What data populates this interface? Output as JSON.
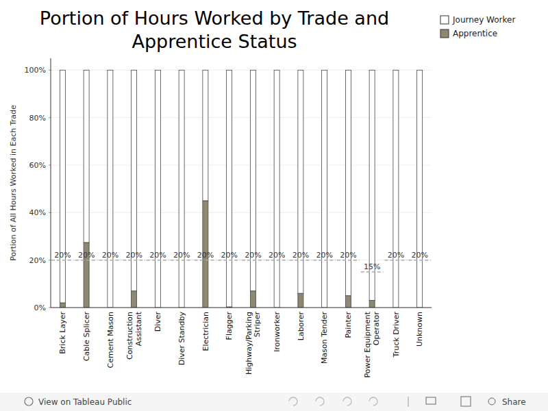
{
  "chart_data": {
    "type": "bar",
    "stacked": true,
    "title": "Portion of Hours Worked by Trade and Apprentice Status",
    "y_label": "Portion of All Hours Worked in Each Trade",
    "categories": [
      "Brick Layer",
      "Cable Splicer",
      "Cement Mason",
      "Construction Assistant",
      "Diver",
      "Diver Standby",
      "Electrician",
      "Flagger",
      "Highway/Parking Striper",
      "Ironworker",
      "Laborer",
      "Mason Tender",
      "Painter",
      "Power Equipment Operator",
      "Truck Driver",
      "Unknown"
    ],
    "series": [
      {
        "name": "Journey Worker",
        "color": "#ffffff",
        "values": [
          98,
          72.6,
          100,
          93,
          100,
          100,
          55,
          99.7,
          93,
          100,
          94,
          100,
          95,
          97,
          100,
          100
        ]
      },
      {
        "name": "Apprentice",
        "color": "#8e8772",
        "values": [
          2,
          27.4,
          0,
          7,
          0,
          0,
          45,
          0.3,
          7,
          0,
          6,
          0,
          5,
          3,
          0,
          0
        ]
      }
    ],
    "targets": [
      20,
      20,
      20,
      20,
      20,
      20,
      20,
      20,
      20,
      20,
      20,
      20,
      20,
      15,
      20,
      20
    ],
    "target_labels": [
      "20%",
      "20%",
      "20%",
      "20%",
      "20%",
      "20%",
      "20%",
      "20%",
      "20%",
      "20%",
      "20%",
      "20%",
      "20%",
      "15%",
      "20%",
      "20%"
    ],
    "ylim": [
      0,
      105
    ],
    "yticks": [
      {
        "value": 0,
        "label": "0%"
      },
      {
        "value": 20,
        "label": "20%"
      },
      {
        "value": 40,
        "label": "40%"
      },
      {
        "value": 60,
        "label": "60%"
      },
      {
        "value": 80,
        "label": "80%"
      },
      {
        "value": 100,
        "label": "100%"
      }
    ],
    "grid": true,
    "legend": "top-right",
    "footer": {
      "link": "View on Tableau Public",
      "share": "Share"
    }
  }
}
